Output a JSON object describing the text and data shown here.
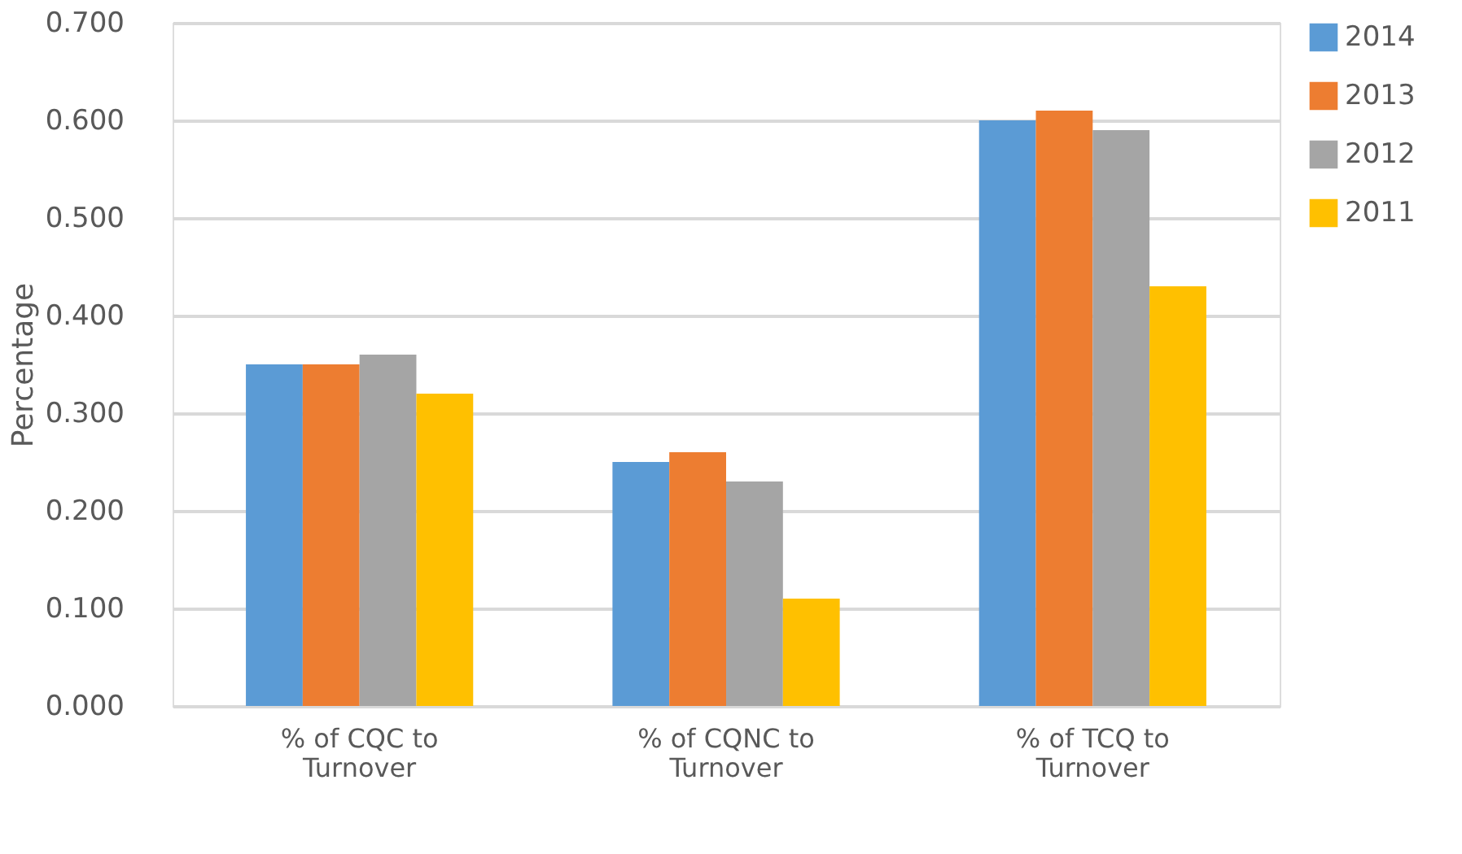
{
  "chart_data": {
    "type": "bar",
    "ylabel": "Percentage",
    "categories": [
      "% of CQC to Turnover",
      "% of CQNC to Turnover",
      "% of TCQ to Turnover"
    ],
    "series": [
      {
        "name": "2014",
        "color": "#5b9bd5",
        "values": [
          0.35,
          0.25,
          0.6
        ]
      },
      {
        "name": "2013",
        "color": "#ed7d31",
        "values": [
          0.35,
          0.26,
          0.61
        ]
      },
      {
        "name": "2012",
        "color": "#a5a5a5",
        "values": [
          0.36,
          0.23,
          0.59
        ]
      },
      {
        "name": "2011",
        "color": "#ffc000",
        "values": [
          0.32,
          0.11,
          0.43
        ]
      }
    ],
    "ylim": [
      0,
      0.7
    ],
    "yticks": [
      {
        "value": 0,
        "label": "0.000"
      },
      {
        "value": 0.1,
        "label": "0.100"
      },
      {
        "value": 0.2,
        "label": "0.200"
      },
      {
        "value": 0.3,
        "label": "0.300"
      },
      {
        "value": 0.4,
        "label": "0.400"
      },
      {
        "value": 0.5,
        "label": "0.500"
      },
      {
        "value": 0.6,
        "label": "0.600"
      },
      {
        "value": 0.7,
        "label": "0.700"
      }
    ],
    "grid": "y",
    "legend": "right"
  }
}
